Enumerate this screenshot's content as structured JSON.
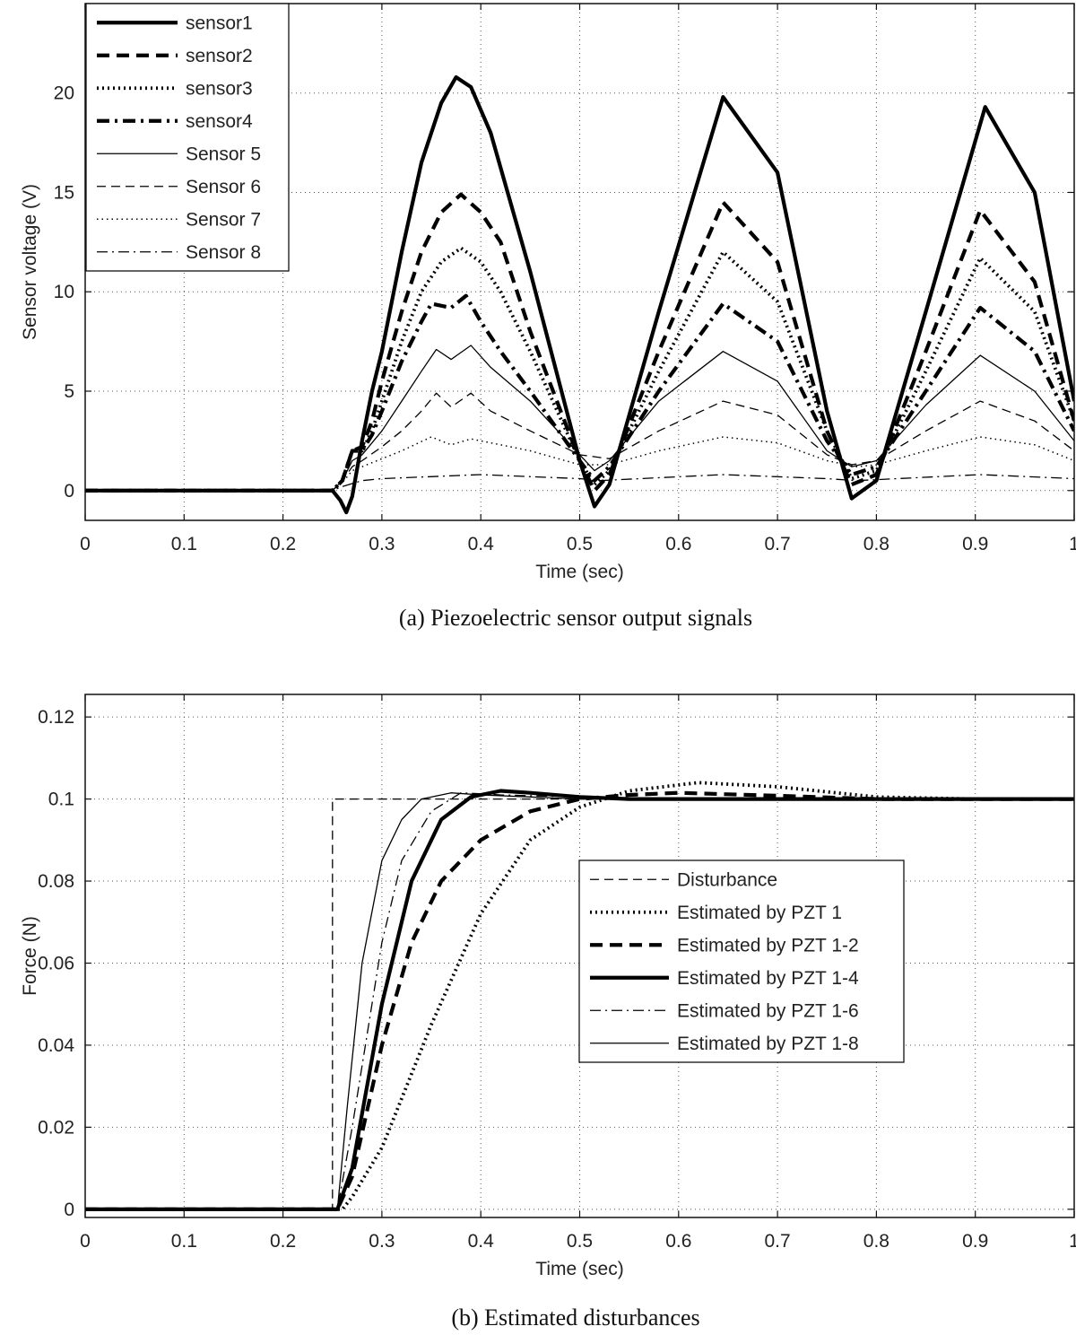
{
  "chart_data": [
    {
      "type": "line",
      "caption": "(a) Piezoelectric sensor output signals",
      "xlabel": "Time (sec)",
      "ylabel": "Sensor voltage (V)",
      "xlim": [
        0,
        1
      ],
      "ylim": [
        -1.5,
        24.5
      ],
      "xticks": [
        "0",
        "0.1",
        "0.2",
        "0.3",
        "0.4",
        "0.5",
        "0.6",
        "0.7",
        "0.8",
        "0.9",
        "1"
      ],
      "yticks": [
        "0",
        "5",
        "10",
        "15",
        "20"
      ],
      "grid": true,
      "legend_position": "top-left",
      "series": [
        {
          "name": "sensor1",
          "style": "solid-thick",
          "x": [
            0,
            0.25,
            0.258,
            0.264,
            0.27,
            0.28,
            0.29,
            0.3,
            0.32,
            0.34,
            0.36,
            0.375,
            0.39,
            0.41,
            0.45,
            0.5,
            0.515,
            0.53,
            0.58,
            0.645,
            0.7,
            0.75,
            0.775,
            0.8,
            0.85,
            0.91,
            0.96,
            1.0
          ],
          "y": [
            0,
            0,
            -0.5,
            -1.1,
            -0.3,
            2.5,
            5,
            7,
            12,
            16.5,
            19.5,
            20.8,
            20.3,
            18,
            11,
            1.5,
            -0.8,
            0.3,
            9,
            19.8,
            16,
            4,
            -0.4,
            0.5,
            9,
            19.3,
            15,
            4.5
          ]
        },
        {
          "name": "sensor2",
          "style": "dash-thick",
          "x": [
            0,
            0.25,
            0.26,
            0.27,
            0.28,
            0.29,
            0.3,
            0.32,
            0.34,
            0.36,
            0.38,
            0.4,
            0.42,
            0.45,
            0.5,
            0.515,
            0.53,
            0.58,
            0.645,
            0.7,
            0.75,
            0.775,
            0.8,
            0.85,
            0.905,
            0.96,
            1.0
          ],
          "y": [
            0,
            0,
            0.5,
            2,
            2.2,
            3.5,
            5.5,
            9,
            12,
            14,
            14.9,
            14,
            12.5,
            8,
            1.5,
            0,
            0.8,
            7,
            14.5,
            11.5,
            3,
            0.3,
            0.8,
            7,
            14.1,
            10.5,
            3.5
          ]
        },
        {
          "name": "sensor3",
          "style": "dot-thick",
          "x": [
            0,
            0.25,
            0.26,
            0.27,
            0.28,
            0.29,
            0.3,
            0.32,
            0.34,
            0.36,
            0.38,
            0.4,
            0.42,
            0.45,
            0.5,
            0.515,
            0.53,
            0.58,
            0.645,
            0.7,
            0.75,
            0.775,
            0.8,
            0.85,
            0.905,
            0.96,
            1.0
          ],
          "y": [
            0,
            0,
            0.5,
            2,
            2,
            3,
            4.5,
            7.5,
            10,
            11.5,
            12.2,
            11.5,
            10,
            7,
            1.5,
            0.3,
            1,
            6,
            12,
            9.5,
            3,
            0.6,
            1,
            6,
            11.7,
            9,
            3.5
          ]
        },
        {
          "name": "sensor4",
          "style": "dashdot-thick",
          "x": [
            0,
            0.25,
            0.26,
            0.27,
            0.28,
            0.29,
            0.3,
            0.32,
            0.34,
            0.35,
            0.37,
            0.385,
            0.4,
            0.42,
            0.45,
            0.5,
            0.515,
            0.53,
            0.58,
            0.645,
            0.7,
            0.75,
            0.775,
            0.8,
            0.85,
            0.905,
            0.96,
            1.0
          ],
          "y": [
            0,
            0,
            0.5,
            2,
            2,
            2.8,
            4,
            6.5,
            8.5,
            9.4,
            9.2,
            9.8,
            8.5,
            7,
            5,
            1.5,
            0.5,
            1.2,
            5,
            9.4,
            7.5,
            2.5,
            0.8,
            1.2,
            5,
            9.2,
            7,
            3
          ]
        },
        {
          "name": "Sensor 5",
          "style": "solid-thin",
          "x": [
            0,
            0.25,
            0.26,
            0.27,
            0.28,
            0.3,
            0.32,
            0.34,
            0.355,
            0.37,
            0.39,
            0.41,
            0.45,
            0.5,
            0.515,
            0.53,
            0.58,
            0.645,
            0.7,
            0.75,
            0.775,
            0.8,
            0.85,
            0.905,
            0.96,
            1.0
          ],
          "y": [
            0,
            0,
            0.5,
            1.5,
            1.8,
            3,
            4.5,
            6,
            7.1,
            6.6,
            7.3,
            6.2,
            4.5,
            1.8,
            1,
            1.5,
            4.5,
            7,
            5.5,
            2,
            1.2,
            1.5,
            4.3,
            6.8,
            5,
            2.5
          ]
        },
        {
          "name": "Sensor 6",
          "style": "dash-thin",
          "x": [
            0,
            0.25,
            0.26,
            0.27,
            0.28,
            0.3,
            0.32,
            0.34,
            0.355,
            0.37,
            0.39,
            0.41,
            0.45,
            0.5,
            0.53,
            0.58,
            0.645,
            0.7,
            0.75,
            0.775,
            0.8,
            0.85,
            0.905,
            0.96,
            1.0
          ],
          "y": [
            0,
            0,
            0.5,
            1.2,
            1.5,
            2.2,
            3,
            4,
            4.9,
            4.2,
            4.9,
            4,
            3,
            1.8,
            1.6,
            3,
            4.5,
            3.8,
            1.8,
            1.3,
            1.5,
            3,
            4.5,
            3.5,
            2
          ]
        },
        {
          "name": "Sensor 7",
          "style": "dot-thin",
          "x": [
            0,
            0.25,
            0.26,
            0.27,
            0.28,
            0.3,
            0.32,
            0.35,
            0.37,
            0.39,
            0.42,
            0.45,
            0.5,
            0.53,
            0.58,
            0.645,
            0.7,
            0.75,
            0.78,
            0.8,
            0.85,
            0.905,
            0.96,
            1.0
          ],
          "y": [
            0,
            0,
            0.4,
            1,
            1.2,
            1.6,
            2,
            2.7,
            2.3,
            2.6,
            2.3,
            2,
            1.3,
            1.3,
            2,
            2.7,
            2.4,
            1.5,
            1.2,
            1.3,
            2,
            2.7,
            2.3,
            1.5
          ]
        },
        {
          "name": "Sensor 8",
          "style": "dashdot-thin",
          "x": [
            0,
            0.25,
            0.26,
            0.28,
            0.3,
            0.4,
            0.5,
            0.52,
            0.645,
            0.75,
            0.78,
            0.905,
            1.0
          ],
          "y": [
            0,
            0,
            0.2,
            0.5,
            0.6,
            0.8,
            0.6,
            0.5,
            0.8,
            0.6,
            0.5,
            0.8,
            0.6
          ]
        }
      ]
    },
    {
      "type": "line",
      "caption": "(b) Estimated disturbances",
      "xlabel": "Time (sec)",
      "ylabel": "Force (N)",
      "xlim": [
        0,
        1
      ],
      "ylim": [
        -0.002,
        0.1255
      ],
      "xticks": [
        "0",
        "0.1",
        "0.2",
        "0.3",
        "0.4",
        "0.5",
        "0.6",
        "0.7",
        "0.8",
        "0.9",
        "1"
      ],
      "yticks": [
        "0",
        "0.02",
        "0.04",
        "0.06",
        "0.08",
        "0.1",
        "0.12"
      ],
      "grid": true,
      "legend_position": "center-right",
      "series": [
        {
          "name": "Disturbance",
          "style": "dash-thin",
          "x": [
            0,
            0.25,
            0.25,
            1.0
          ],
          "y": [
            0,
            0,
            0.1,
            0.1
          ]
        },
        {
          "name": "Estimated by PZT 1",
          "style": "dot-thick",
          "x": [
            0,
            0.26,
            0.27,
            0.3,
            0.35,
            0.4,
            0.45,
            0.5,
            0.55,
            0.62,
            0.7,
            0.8,
            0.9,
            1.0
          ],
          "y": [
            0,
            0,
            0.003,
            0.015,
            0.045,
            0.072,
            0.09,
            0.098,
            0.102,
            0.104,
            0.103,
            0.1005,
            0.1,
            0.1
          ]
        },
        {
          "name": "Estimated by PZT 1-2",
          "style": "dash-thick",
          "x": [
            0,
            0.255,
            0.27,
            0.3,
            0.33,
            0.36,
            0.4,
            0.45,
            0.5,
            0.55,
            0.6,
            0.7,
            0.8,
            1.0
          ],
          "y": [
            0,
            0,
            0.008,
            0.04,
            0.065,
            0.08,
            0.09,
            0.097,
            0.1,
            0.101,
            0.1015,
            0.1008,
            0.1,
            0.1
          ]
        },
        {
          "name": "Estimated by PZT 1-4",
          "style": "solid-thick",
          "x": [
            0,
            0.255,
            0.27,
            0.3,
            0.33,
            0.36,
            0.39,
            0.42,
            0.45,
            0.5,
            0.55,
            0.65,
            1.0
          ],
          "y": [
            0,
            0,
            0.01,
            0.05,
            0.08,
            0.095,
            0.1005,
            0.102,
            0.1015,
            0.1005,
            0.1,
            0.1,
            0.1
          ]
        },
        {
          "name": "Estimated by PZT 1-6",
          "style": "dashdot-thin",
          "x": [
            0,
            0.255,
            0.27,
            0.3,
            0.32,
            0.35,
            0.38,
            0.42,
            0.5,
            0.6,
            1.0
          ],
          "y": [
            0,
            0,
            0.02,
            0.065,
            0.085,
            0.097,
            0.1015,
            0.101,
            0.1005,
            0.1,
            0.1
          ]
        },
        {
          "name": "Estimated by PZT 1-8",
          "style": "solid-thin",
          "x": [
            0,
            0.255,
            0.265,
            0.28,
            0.3,
            0.32,
            0.34,
            0.37,
            0.4,
            0.45,
            0.5,
            1.0
          ],
          "y": [
            0,
            0,
            0.025,
            0.06,
            0.085,
            0.095,
            0.1,
            0.1015,
            0.101,
            0.1005,
            0.1,
            0.1
          ]
        }
      ]
    }
  ]
}
